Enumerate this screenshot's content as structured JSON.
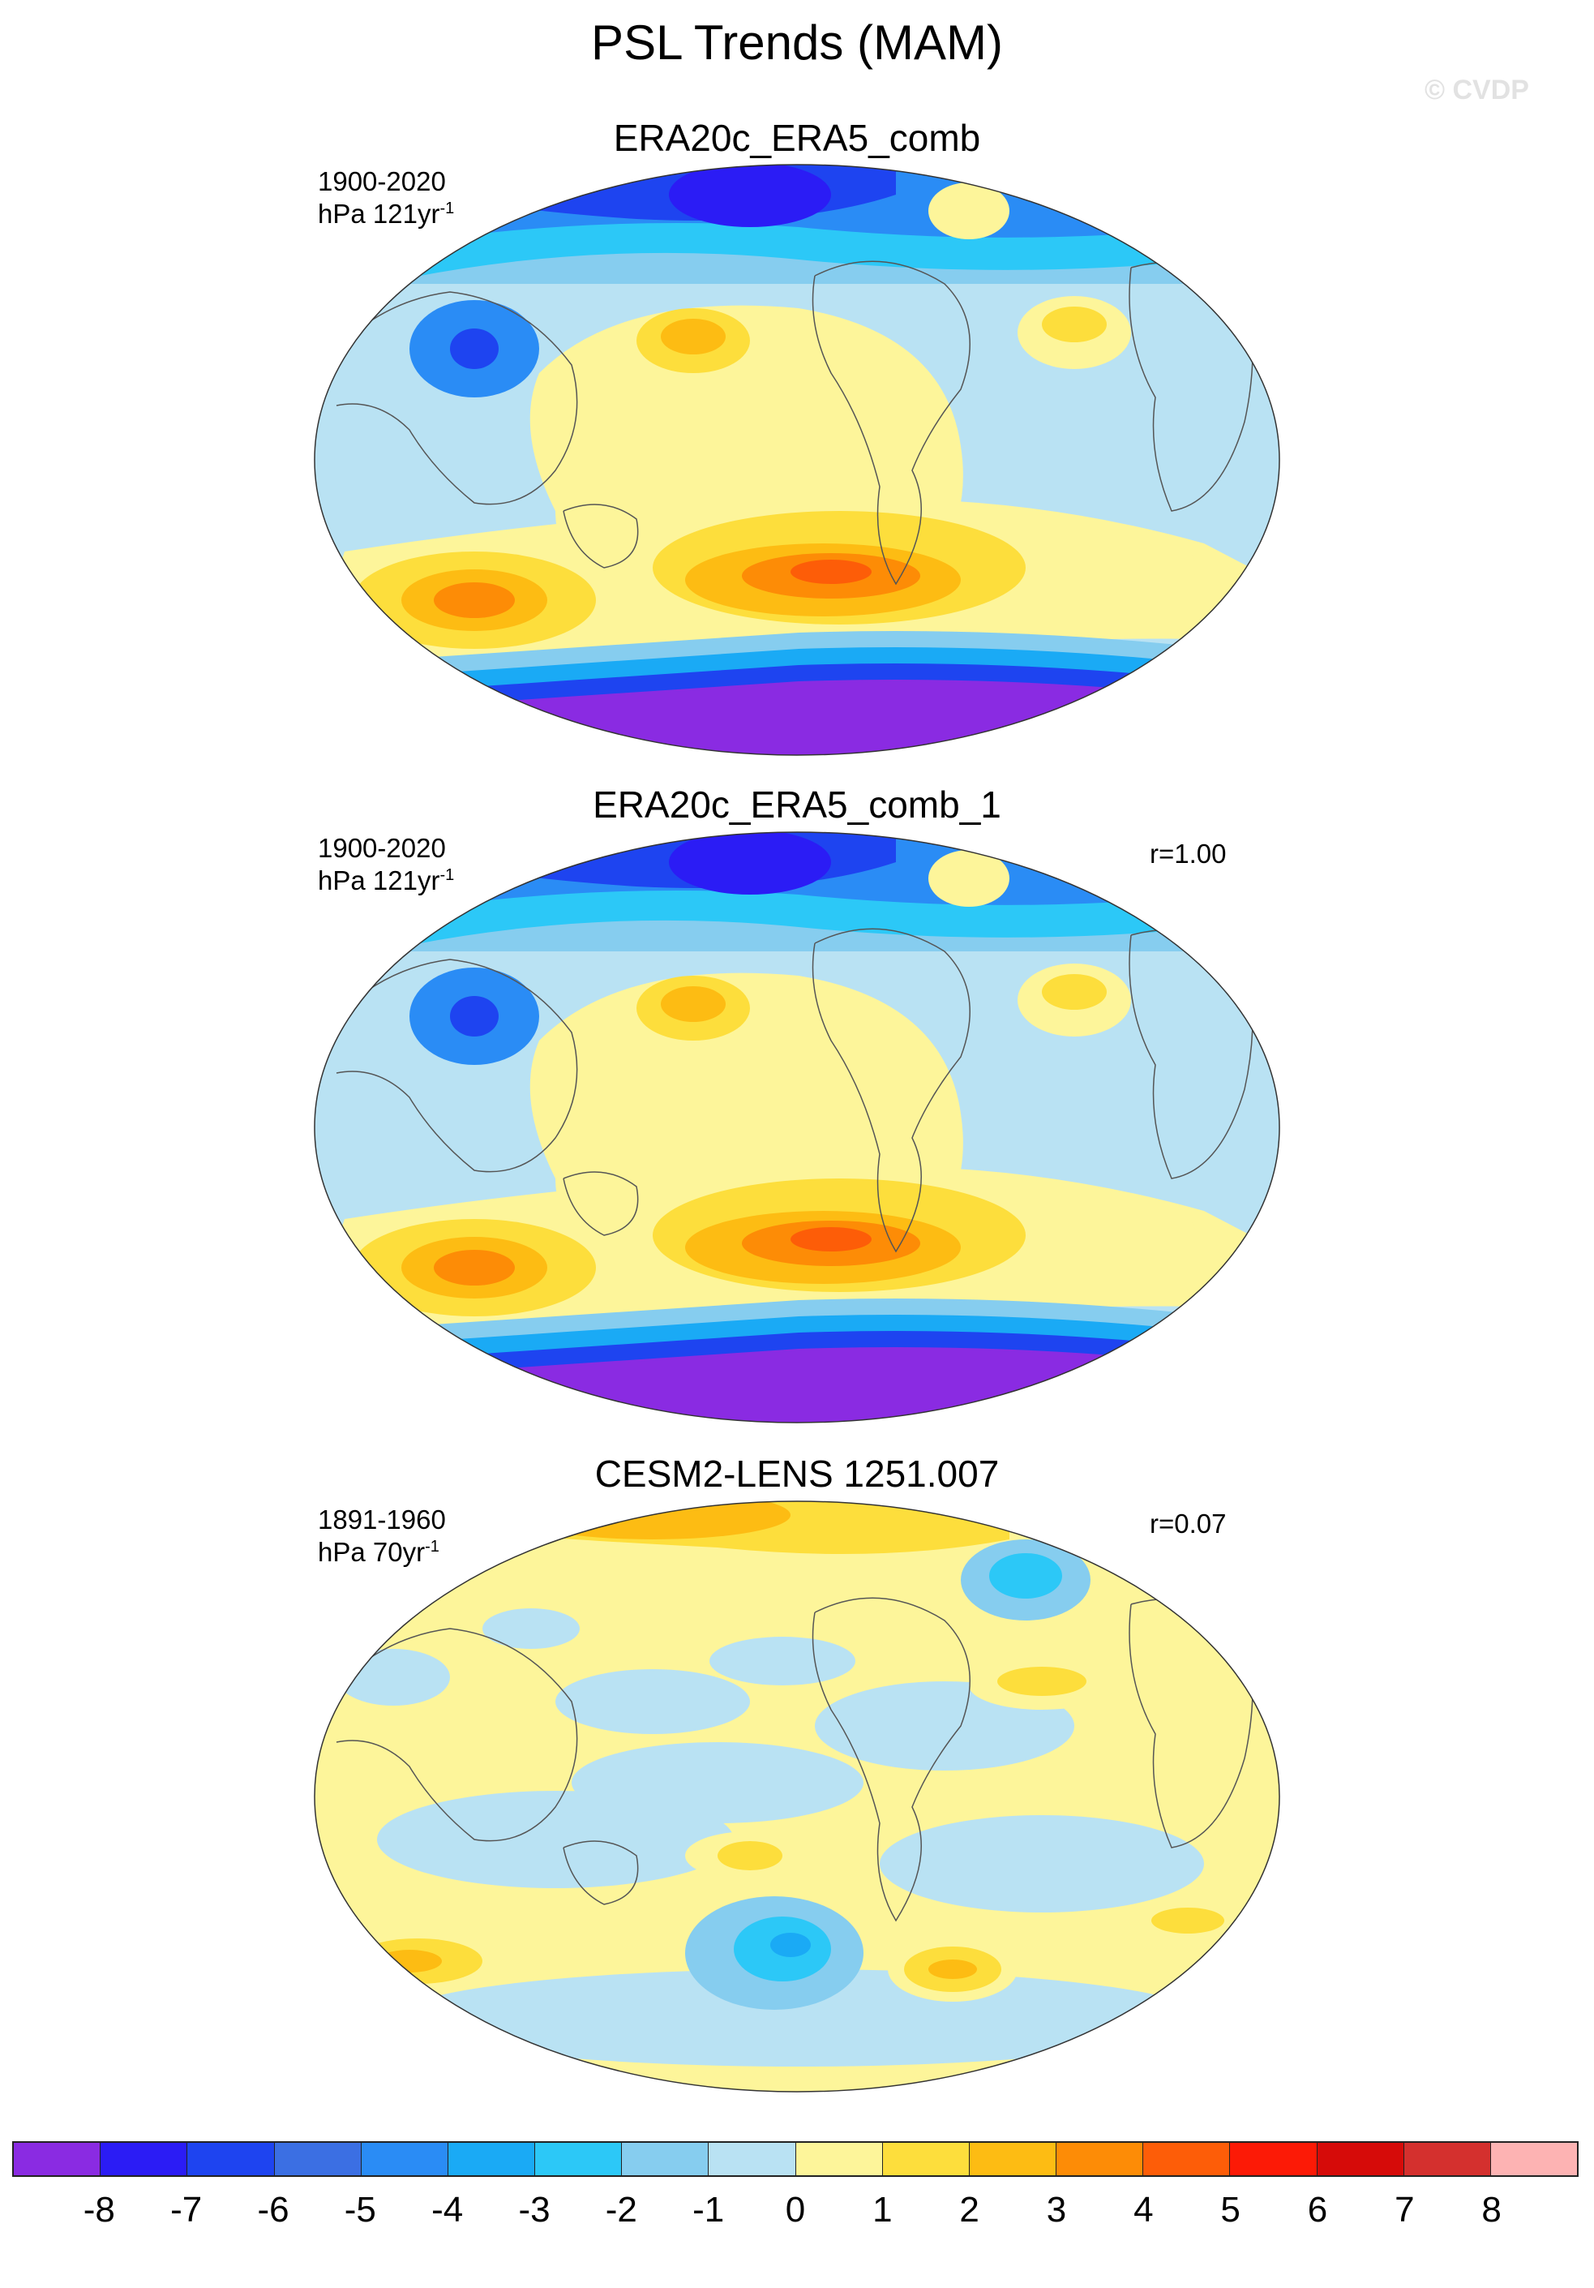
{
  "title": "PSL Trends (MAM)",
  "watermark": "© CVDP",
  "panels": [
    {
      "title": "ERA20c_ERA5_comb",
      "period": "1900-2020",
      "units_base": "hPa 121yr",
      "units_sup": "-1",
      "corr": ""
    },
    {
      "title": "ERA20c_ERA5_comb_1",
      "period": "1900-2020",
      "units_base": "hPa 121yr",
      "units_sup": "-1",
      "corr": "r=1.00"
    },
    {
      "title": "CESM2-LENS 1251.007",
      "period": "1891-1960",
      "units_base": "hPa 70yr",
      "units_sup": "-1",
      "corr": "r=0.07"
    }
  ],
  "colorbar": {
    "colors": [
      "#8a2be2",
      "#2b1cf5",
      "#1e44f0",
      "#3b6fe3",
      "#2a8cf5",
      "#1aaaf5",
      "#2cc8f7",
      "#86cdef",
      "#b9e2f3",
      "#fdf59a",
      "#fdde3c",
      "#fdbc13",
      "#fd8c06",
      "#fd5d08",
      "#fc1a06",
      "#d60b09",
      "#d4302e",
      "#fdb3b3"
    ],
    "labels": [
      "-8",
      "-7",
      "-6",
      "-5",
      "-4",
      "-3",
      "-2",
      "-1",
      "0",
      "1",
      "2",
      "3",
      "4",
      "5",
      "6",
      "7",
      "8"
    ]
  },
  "chart_data": {
    "type": "heatmap",
    "projection": "global elliptical map",
    "variable": "PSL",
    "season": "MAM",
    "units": "hPa",
    "color_levels": [
      -8,
      -7,
      -6,
      -5,
      -4,
      -3,
      -2,
      -1,
      0,
      1,
      2,
      3,
      4,
      5,
      6,
      7,
      8
    ],
    "maps": [
      {
        "name": "ERA20c_ERA5_comb",
        "period": "1900-2020",
        "trend_span_years": 121
      },
      {
        "name": "ERA20c_ERA5_comb_1",
        "period": "1900-2020",
        "trend_span_years": 121,
        "r": 1.0
      },
      {
        "name": "CESM2-LENS 1251.007",
        "period": "1891-1960",
        "trend_span_years": 70,
        "r": 0.07
      }
    ]
  }
}
